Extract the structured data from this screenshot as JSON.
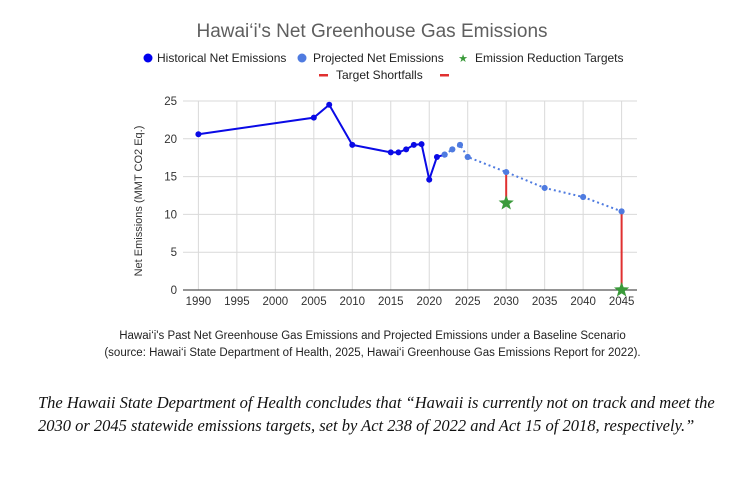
{
  "chart_data": {
    "type": "line",
    "title": "Hawai‘i's Net Greenhouse Gas Emissions",
    "xlabel": "",
    "ylabel": "Net Emissions (MMT CO2 Eq.)",
    "xlim": [
      1988,
      2047
    ],
    "ylim": [
      0,
      25
    ],
    "x_ticks": [
      "1990",
      "1995",
      "2000",
      "2005",
      "2010",
      "2015",
      "2020",
      "2025",
      "2030",
      "2035",
      "2040",
      "2045"
    ],
    "y_ticks": [
      "0",
      "5",
      "10",
      "15",
      "20",
      "25"
    ],
    "grid": true,
    "legend_position": "top",
    "legend": [
      {
        "label": "Historical Net Emissions",
        "marker": "circle",
        "color": "#0000ee"
      },
      {
        "label": "Projected Net Emissions",
        "marker": "circle",
        "color": "#4f7be0"
      },
      {
        "label": "Emission Reduction Targets",
        "marker": "star",
        "color": "#3a9a3a"
      },
      {
        "label": "Target Shortfalls",
        "marker": "dash",
        "color": "#e03030"
      }
    ],
    "series": [
      {
        "name": "Historical Net Emissions",
        "style": "solid",
        "color": "#0a0ae6",
        "x": [
          1990,
          2005,
          2007,
          2010,
          2015,
          2016,
          2017,
          2018,
          2019,
          2020,
          2021,
          2022
        ],
        "y": [
          20.6,
          22.8,
          24.5,
          19.2,
          18.2,
          18.2,
          18.6,
          19.2,
          19.3,
          14.6,
          17.6,
          17.9
        ]
      },
      {
        "name": "Projected Net Emissions",
        "style": "dotted",
        "color": "#4f7be0",
        "x": [
          2022,
          2023,
          2024,
          2025,
          2030,
          2035,
          2040,
          2045
        ],
        "y": [
          17.9,
          18.6,
          19.2,
          17.6,
          15.6,
          13.5,
          12.3,
          10.4
        ]
      },
      {
        "name": "Emission Reduction Targets",
        "style": "marker",
        "color": "#3a9a3a",
        "x": [
          2030,
          2045
        ],
        "y": [
          11.5,
          0
        ]
      },
      {
        "name": "Target Shortfalls",
        "style": "vertical-segment",
        "color": "#e03030",
        "segments": [
          {
            "x": 2030,
            "from": 11.5,
            "to": 15.6
          },
          {
            "x": 2045,
            "from": 0,
            "to": 10.4
          }
        ]
      }
    ]
  },
  "caption": {
    "line1": "Hawai‘i's Past Net Greenhouse Gas Emissions and Projected Emissions under a Baseline Scenario",
    "line2": "(source: Hawai‘i State Department of Health, 2025, Hawai‘i Greenhouse Gas Emissions Report for 2022)."
  },
  "quote": "The Hawaii State Department of Health concludes that “Hawaii is currently not on track and meet the 2030 or 2045 statewide emissions targets, set by Act 238 of 2022 and Act 15 of 2018, respectively.”"
}
